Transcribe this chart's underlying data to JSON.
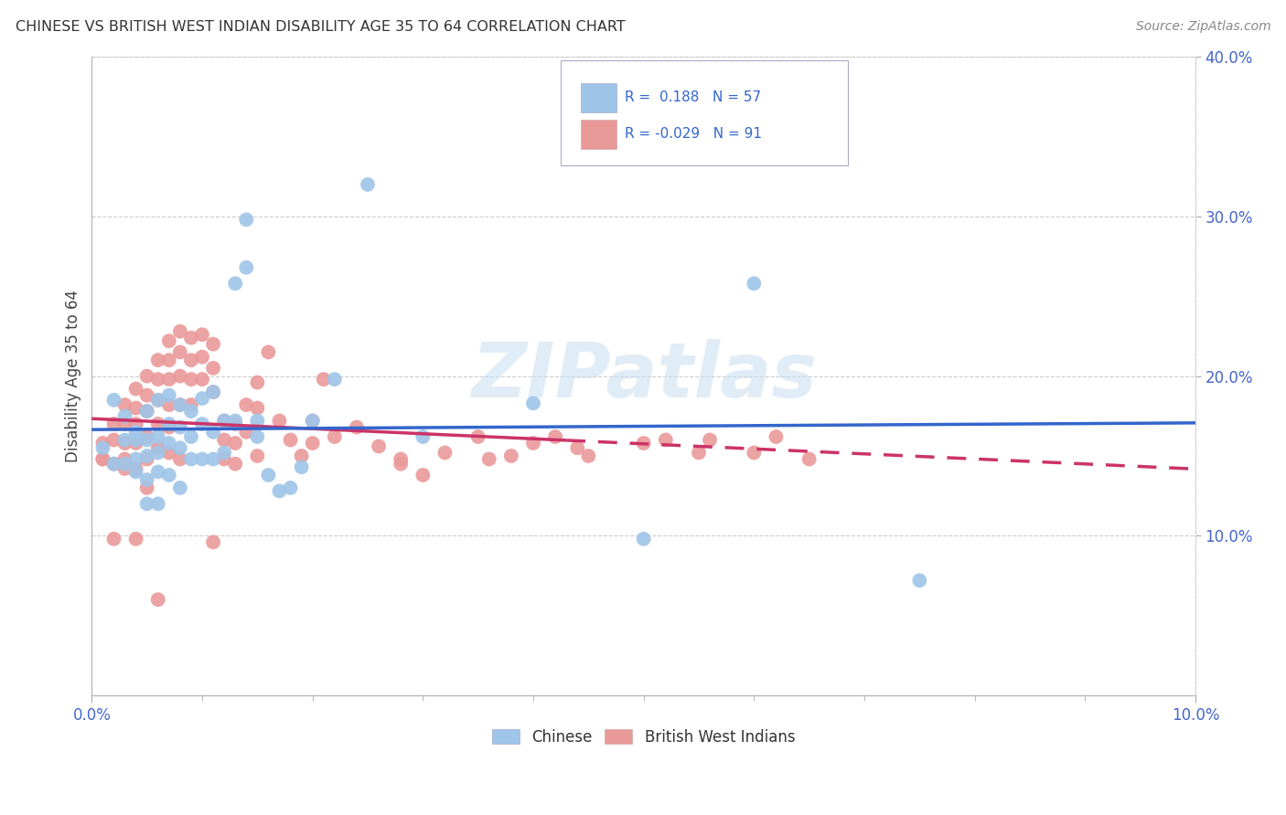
{
  "title": "CHINESE VS BRITISH WEST INDIAN DISABILITY AGE 35 TO 64 CORRELATION CHART",
  "source": "Source: ZipAtlas.com",
  "ylabel": "Disability Age 35 to 64",
  "xlim": [
    0.0,
    0.1
  ],
  "ylim": [
    0.0,
    0.4
  ],
  "xtick_positions": [
    0.0,
    0.1
  ],
  "xtick_labels": [
    "0.0%",
    "10.0%"
  ],
  "ytick_positions": [
    0.1,
    0.2,
    0.3,
    0.4
  ],
  "ytick_labels": [
    "10.0%",
    "20.0%",
    "30.0%",
    "40.0%"
  ],
  "legend_blue_text": "R =  0.188   N = 57",
  "legend_pink_text": "R = -0.029   N = 91",
  "watermark": "ZIPatlas",
  "blue_color": "#9fc5e8",
  "pink_color": "#ea9999",
  "blue_line_color": "#3366cc",
  "pink_line_color": "#cc3366",
  "background_color": "#ffffff",
  "chinese_x": [
    0.001,
    0.002,
    0.002,
    0.003,
    0.003,
    0.003,
    0.004,
    0.004,
    0.004,
    0.004,
    0.005,
    0.005,
    0.005,
    0.005,
    0.005,
    0.006,
    0.006,
    0.006,
    0.006,
    0.006,
    0.007,
    0.007,
    0.007,
    0.007,
    0.008,
    0.008,
    0.008,
    0.008,
    0.009,
    0.009,
    0.009,
    0.01,
    0.01,
    0.01,
    0.011,
    0.011,
    0.011,
    0.012,
    0.012,
    0.013,
    0.013,
    0.014,
    0.014,
    0.015,
    0.015,
    0.016,
    0.017,
    0.018,
    0.019,
    0.02,
    0.022,
    0.025,
    0.03,
    0.04,
    0.05,
    0.06,
    0.075
  ],
  "chinese_y": [
    0.155,
    0.185,
    0.145,
    0.175,
    0.16,
    0.145,
    0.16,
    0.148,
    0.14,
    0.165,
    0.178,
    0.16,
    0.15,
    0.135,
    0.12,
    0.185,
    0.162,
    0.152,
    0.14,
    0.12,
    0.188,
    0.17,
    0.158,
    0.138,
    0.182,
    0.168,
    0.155,
    0.13,
    0.178,
    0.162,
    0.148,
    0.186,
    0.17,
    0.148,
    0.19,
    0.165,
    0.148,
    0.172,
    0.152,
    0.258,
    0.172,
    0.298,
    0.268,
    0.172,
    0.162,
    0.138,
    0.128,
    0.13,
    0.143,
    0.172,
    0.198,
    0.32,
    0.162,
    0.183,
    0.098,
    0.258,
    0.072
  ],
  "bwi_x": [
    0.001,
    0.001,
    0.002,
    0.002,
    0.002,
    0.003,
    0.003,
    0.003,
    0.003,
    0.004,
    0.004,
    0.004,
    0.004,
    0.004,
    0.005,
    0.005,
    0.005,
    0.005,
    0.005,
    0.005,
    0.006,
    0.006,
    0.006,
    0.006,
    0.006,
    0.007,
    0.007,
    0.007,
    0.007,
    0.007,
    0.007,
    0.008,
    0.008,
    0.008,
    0.008,
    0.009,
    0.009,
    0.009,
    0.009,
    0.01,
    0.01,
    0.01,
    0.011,
    0.011,
    0.011,
    0.012,
    0.012,
    0.012,
    0.013,
    0.013,
    0.013,
    0.014,
    0.014,
    0.015,
    0.015,
    0.016,
    0.017,
    0.018,
    0.019,
    0.02,
    0.021,
    0.022,
    0.024,
    0.026,
    0.028,
    0.03,
    0.032,
    0.035,
    0.038,
    0.04,
    0.042,
    0.045,
    0.05,
    0.055,
    0.056,
    0.06,
    0.062,
    0.065,
    0.052,
    0.044,
    0.036,
    0.028,
    0.02,
    0.015,
    0.011,
    0.008,
    0.006,
    0.004,
    0.003,
    0.002,
    0.001
  ],
  "bwi_y": [
    0.158,
    0.148,
    0.17,
    0.16,
    0.145,
    0.182,
    0.17,
    0.158,
    0.142,
    0.192,
    0.18,
    0.17,
    0.158,
    0.142,
    0.2,
    0.188,
    0.178,
    0.162,
    0.148,
    0.13,
    0.21,
    0.198,
    0.185,
    0.17,
    0.155,
    0.222,
    0.21,
    0.198,
    0.182,
    0.168,
    0.152,
    0.228,
    0.215,
    0.2,
    0.182,
    0.224,
    0.21,
    0.198,
    0.182,
    0.226,
    0.212,
    0.198,
    0.22,
    0.205,
    0.19,
    0.172,
    0.16,
    0.148,
    0.17,
    0.158,
    0.145,
    0.182,
    0.165,
    0.196,
    0.18,
    0.215,
    0.172,
    0.16,
    0.15,
    0.172,
    0.198,
    0.162,
    0.168,
    0.156,
    0.148,
    0.138,
    0.152,
    0.162,
    0.15,
    0.158,
    0.162,
    0.15,
    0.158,
    0.152,
    0.16,
    0.152,
    0.162,
    0.148,
    0.16,
    0.155,
    0.148,
    0.145,
    0.158,
    0.15,
    0.096,
    0.148,
    0.06,
    0.098,
    0.148,
    0.098,
    0.148
  ]
}
